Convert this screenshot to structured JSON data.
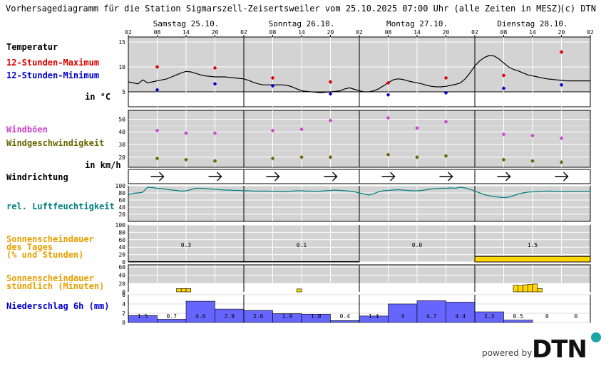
{
  "header": {
    "title": "Vorhersagediagramm für die Station Sigmarszell-Zeisertsweiler vom 25.10.2025 07:00 Uhr (alle Zeiten in MESZ)",
    "copyright": "(c) DTN"
  },
  "footer": {
    "powered_by": "powered by",
    "logo_text": "DTN"
  },
  "labels": {
    "temperature": "Temperatur",
    "max12": "12-Stunden-Maximum",
    "min12": "12-Stunden-Minimum",
    "temp_unit": "in °C",
    "gusts": "Windböen",
    "wind_speed": "Windgeschwindigkeit",
    "wind_unit": "in km/h",
    "wind_direction": "Windrichtung",
    "humidity": "rel. Luftfeuchtigkeit",
    "sun_daily": "Sonnenscheindauer\ndes Tages\n(% und Stunden)",
    "sun_hourly": "Sonnenscheindauer\nstündlich (Minuten)",
    "precip": "Niederschlag 6h (mm)"
  },
  "colors": {
    "max": "#dd0000",
    "min": "#0000cc",
    "gust": "#cc44cc",
    "wind": "#666600",
    "humidity": "#008080",
    "sun": "#ffd700",
    "sun_label": "#e8a000",
    "precip": "#6666ff",
    "precip_label": "#0000cc",
    "panel_bg": "#d3d3d3"
  },
  "chart_data": {
    "type": "line",
    "days": [
      {
        "label": "Samstag 25.10."
      },
      {
        "label": "Sonntag 26.10."
      },
      {
        "label": "Montag 27.10."
      },
      {
        "label": "Dienstag 28.10."
      }
    ],
    "hour_ticks": [
      "02",
      "08",
      "14",
      "20",
      "02",
      "08",
      "14",
      "20",
      "02",
      "08",
      "14",
      "20",
      "02",
      "08",
      "14",
      "20",
      "02"
    ],
    "temperature": {
      "yticks": [
        5,
        10,
        15
      ],
      "ylim": [
        2,
        16
      ],
      "series_hours": [
        0,
        1,
        2,
        3,
        4,
        5,
        6,
        7,
        8,
        9,
        10,
        11,
        12,
        13,
        14,
        15,
        16,
        17,
        18,
        19,
        20,
        21,
        22,
        23,
        24,
        25,
        26,
        27,
        28,
        29,
        30,
        31,
        32,
        33,
        34,
        35,
        36,
        37,
        38,
        39,
        40,
        41,
        42,
        43,
        44,
        45,
        46,
        47,
        48,
        49,
        50,
        51,
        52,
        53,
        54,
        55,
        56,
        57,
        58,
        59,
        60,
        61,
        62,
        63,
        64,
        65,
        66,
        67,
        68,
        69,
        70,
        71,
        72,
        73,
        74,
        75,
        76,
        77,
        78,
        79,
        80,
        81,
        82,
        83,
        84,
        85,
        86,
        87,
        88,
        89,
        90,
        91,
        92,
        93,
        94,
        95,
        96
      ],
      "series_values": [
        7.0,
        6.8,
        6.6,
        7.4,
        6.8,
        7.0,
        7.2,
        7.4,
        7.6,
        8.0,
        8.4,
        8.8,
        9.1,
        9.0,
        8.7,
        8.4,
        8.2,
        8.1,
        8.0,
        8.0,
        8.0,
        7.9,
        7.8,
        7.7,
        7.6,
        7.3,
        6.9,
        6.6,
        6.4,
        6.4,
        6.4,
        6.4,
        6.4,
        6.3,
        6.0,
        5.6,
        5.2,
        5.1,
        5.0,
        4.9,
        4.8,
        4.9,
        5.0,
        5.1,
        5.2,
        5.6,
        5.8,
        5.5,
        5.2,
        5.0,
        5.0,
        5.2,
        5.6,
        6.2,
        6.8,
        7.4,
        7.6,
        7.5,
        7.2,
        7.0,
        6.8,
        6.6,
        6.3,
        6.1,
        6.0,
        6.0,
        6.1,
        6.3,
        6.5,
        6.8,
        7.6,
        8.8,
        10.2,
        11.2,
        11.9,
        12.3,
        12.2,
        11.6,
        10.8,
        10.0,
        9.5,
        9.2,
        8.8,
        8.4,
        8.2,
        8.0,
        7.8,
        7.6,
        7.5,
        7.4,
        7.3,
        7.2,
        7.2,
        7.2,
        7.2,
        7.2,
        7.2
      ],
      "max_points": [
        {
          "hour": 6,
          "value": 10.0
        },
        {
          "hour": 18,
          "value": 9.8
        },
        {
          "hour": 30,
          "value": 7.8
        },
        {
          "hour": 42,
          "value": 7.0
        },
        {
          "hour": 54,
          "value": 6.8
        },
        {
          "hour": 66,
          "value": 7.8
        },
        {
          "hour": 78,
          "value": 8.3
        },
        {
          "hour": 90,
          "value": 13.0
        }
      ],
      "min_points": [
        {
          "hour": 6,
          "value": 5.4
        },
        {
          "hour": 18,
          "value": 6.6
        },
        {
          "hour": 30,
          "value": 6.2
        },
        {
          "hour": 42,
          "value": 4.6
        },
        {
          "hour": 54,
          "value": 4.4
        },
        {
          "hour": 66,
          "value": 4.8
        },
        {
          "hour": 78,
          "value": 5.7
        },
        {
          "hour": 90,
          "value": 6.4
        }
      ]
    },
    "wind": {
      "yticks": [
        20,
        30,
        40,
        50
      ],
      "ylim": [
        12,
        57
      ],
      "gusts": [
        {
          "hour": 6,
          "value": 41
        },
        {
          "hour": 12,
          "value": 39
        },
        {
          "hour": 18,
          "value": 39
        },
        {
          "hour": 30,
          "value": 41
        },
        {
          "hour": 36,
          "value": 42
        },
        {
          "hour": 42,
          "value": 49
        },
        {
          "hour": 54,
          "value": 51
        },
        {
          "hour": 60,
          "value": 43
        },
        {
          "hour": 66,
          "value": 48
        },
        {
          "hour": 78,
          "value": 38
        },
        {
          "hour": 84,
          "value": 37
        },
        {
          "hour": 90,
          "value": 35
        }
      ],
      "speed": [
        {
          "hour": 6,
          "value": 19
        },
        {
          "hour": 12,
          "value": 18
        },
        {
          "hour": 18,
          "value": 17
        },
        {
          "hour": 30,
          "value": 19
        },
        {
          "hour": 36,
          "value": 20
        },
        {
          "hour": 42,
          "value": 20
        },
        {
          "hour": 54,
          "value": 22
        },
        {
          "hour": 60,
          "value": 20
        },
        {
          "hour": 66,
          "value": 21
        },
        {
          "hour": 78,
          "value": 18
        },
        {
          "hour": 84,
          "value": 17
        },
        {
          "hour": 90,
          "value": 16
        }
      ],
      "direction_hours": [
        6,
        18,
        30,
        42,
        54,
        66,
        78,
        90
      ]
    },
    "humidity": {
      "yticks": [
        20,
        40,
        60,
        80,
        100
      ],
      "ylim": [
        0,
        100
      ],
      "series_values": [
        75,
        79,
        80,
        82,
        96,
        95,
        93,
        92,
        90,
        88,
        87,
        85,
        86,
        89,
        93,
        93,
        92,
        91,
        90,
        89,
        88,
        88,
        87,
        87,
        86,
        86,
        85,
        85,
        85,
        85,
        84,
        84,
        83,
        84,
        85,
        86,
        86,
        85,
        85,
        84,
        85,
        86,
        87,
        88,
        87,
        86,
        85,
        83,
        80,
        77,
        74,
        78,
        83,
        86,
        87,
        88,
        89,
        88,
        87,
        86,
        86,
        87,
        89,
        91,
        92,
        93,
        93,
        94,
        93,
        96,
        94,
        90,
        85,
        80,
        75,
        72,
        70,
        68,
        67,
        68,
        72,
        77,
        80,
        82,
        83,
        83,
        84,
        85,
        85,
        84,
        84,
        83,
        84,
        84,
        84,
        84,
        84
      ]
    },
    "sun_daily": {
      "yticks": [
        0,
        20,
        40,
        60,
        80,
        100
      ],
      "ylim": [
        0,
        100
      ],
      "percent": [
        1,
        1,
        0,
        15
      ],
      "hours": [
        "0.3",
        "0.1",
        "0.0",
        "1.5"
      ]
    },
    "sun_hourly": {
      "yticks": [
        0,
        20,
        40,
        60
      ],
      "ylim": [
        0,
        65
      ],
      "bars": [
        {
          "hour": 10,
          "value": 8
        },
        {
          "hour": 11,
          "value": 8
        },
        {
          "hour": 12,
          "value": 8
        },
        {
          "hour": 35,
          "value": 7
        },
        {
          "hour": 80,
          "value": 16
        },
        {
          "hour": 81,
          "value": 15
        },
        {
          "hour": 82,
          "value": 17
        },
        {
          "hour": 83,
          "value": 18
        },
        {
          "hour": 84,
          "value": 19
        },
        {
          "hour": 85,
          "value": 8
        }
      ]
    },
    "precip": {
      "yticks": [
        0,
        2,
        4,
        6
      ],
      "ylim": [
        0,
        6
      ],
      "values": [
        1.5,
        0.7,
        4.6,
        2.9,
        2.6,
        1.9,
        1.8,
        0.4,
        1.4,
        4,
        4.7,
        4.4,
        2.3,
        0.5,
        0,
        0
      ],
      "labels": [
        "1.5",
        "0.7",
        "4.6",
        "2.9",
        "2.6",
        "1.9",
        "1.8",
        "0.4",
        "1.4",
        "4",
        "4.7",
        "4.4",
        "2.3",
        "0.5",
        "0",
        "0"
      ]
    }
  }
}
